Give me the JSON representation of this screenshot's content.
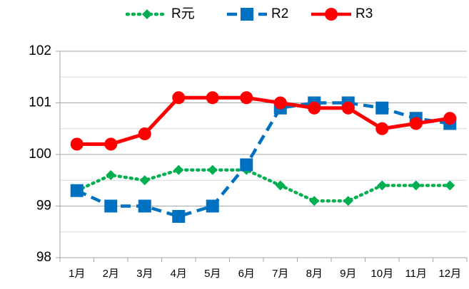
{
  "chart_data": {
    "type": "line",
    "categories": [
      "1月",
      "2月",
      "3月",
      "4月",
      "5月",
      "6月",
      "7月",
      "8月",
      "9月",
      "10月",
      "11月",
      "12月"
    ],
    "series": [
      {
        "name": "R元",
        "color": "#00b050",
        "marker": "diamond",
        "line_style": "dotted",
        "values": [
          99.3,
          99.6,
          99.5,
          99.7,
          99.7,
          99.7,
          99.4,
          99.1,
          99.1,
          99.4,
          99.4,
          99.4
        ]
      },
      {
        "name": "R2",
        "color": "#0070c0",
        "marker": "square",
        "line_style": "dashed",
        "values": [
          99.3,
          99.0,
          99.0,
          98.8,
          99.0,
          99.8,
          100.9,
          101.0,
          101.0,
          100.9,
          100.7,
          100.6
        ]
      },
      {
        "name": "R3",
        "color": "#ff0000",
        "marker": "circle",
        "line_style": "solid",
        "values": [
          100.2,
          100.2,
          100.4,
          101.1,
          101.1,
          101.1,
          101.0,
          100.9,
          100.9,
          100.5,
          100.6,
          100.7
        ]
      }
    ],
    "ylim": [
      98,
      102
    ],
    "yticks": [
      98,
      99,
      100,
      101,
      102
    ],
    "minor_yticks": [
      98.5,
      99.5,
      100.5,
      101.5
    ],
    "grid": true,
    "legend": "top"
  }
}
